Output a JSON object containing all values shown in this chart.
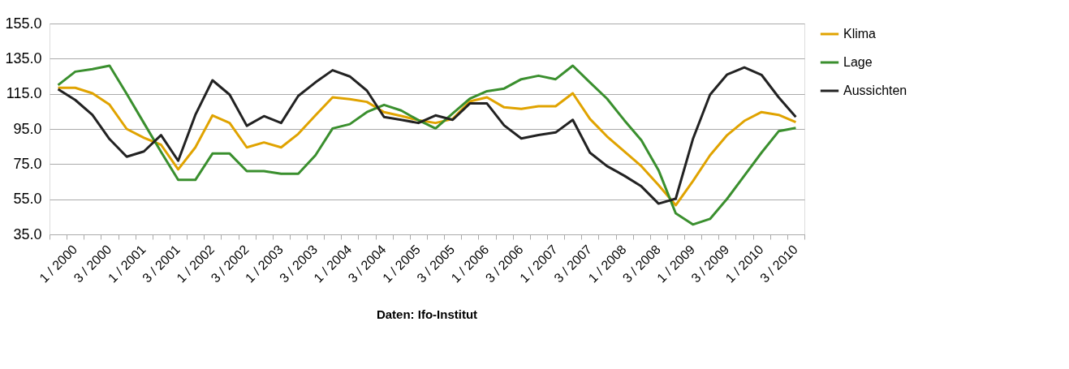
{
  "chart_data": {
    "type": "line",
    "categories": [
      "1 / 2000",
      null,
      "3 / 2000",
      null,
      "1 / 2001",
      null,
      "3 / 2001",
      null,
      "1 / 2002",
      null,
      "3 / 2002",
      null,
      "1 / 2003",
      null,
      "3 / 2003",
      null,
      "1 / 2004",
      null,
      "3 / 2004",
      null,
      "1 / 2005",
      null,
      "3 / 2005",
      null,
      "1 / 2006",
      null,
      "3 / 2006",
      null,
      "1 / 2007",
      null,
      "3 / 2007",
      null,
      "1 / 2008",
      null,
      "3 / 2008",
      null,
      "1 / 2009",
      null,
      "3 / 2009",
      null,
      "1 / 2010",
      null,
      "3 / 2010",
      null
    ],
    "series": [
      {
        "name": "Klima",
        "color": "#e0a300",
        "values": [
          118.4,
          118.4,
          115.3,
          108.8,
          95.0,
          90.0,
          86.0,
          72.0,
          84.5,
          102.7,
          98.4,
          84.5,
          87.3,
          84.5,
          92.2,
          102.7,
          113.0,
          112.0,
          110.4,
          104.6,
          102.4,
          100.0,
          98.4,
          100.7,
          110.7,
          113.0,
          107.3,
          106.4,
          107.9,
          107.9,
          115.3,
          100.7,
          90.7,
          82.2,
          73.8,
          63.0,
          51.6,
          65.3,
          80.0,
          91.5,
          99.6,
          104.6,
          103.0,
          98.9
        ]
      },
      {
        "name": "Lage",
        "color": "#3a8f2e",
        "values": [
          120.0,
          127.6,
          129.0,
          131.0,
          115.0,
          98.4,
          82.0,
          66.0,
          66.0,
          81.0,
          81.0,
          71.0,
          71.0,
          69.5,
          69.5,
          80.0,
          95.3,
          97.7,
          104.6,
          108.7,
          105.5,
          100.0,
          95.3,
          103.8,
          112.2,
          116.5,
          118.0,
          123.3,
          125.3,
          123.3,
          131.0,
          121.5,
          112.2,
          100.0,
          88.5,
          71.5,
          47.0,
          40.6,
          43.8,
          55.3,
          68.4,
          81.5,
          93.7,
          95.6
        ]
      },
      {
        "name": "Aussichten",
        "color": "#222222",
        "values": [
          117.6,
          111.5,
          103.0,
          89.2,
          79.2,
          82.2,
          91.5,
          76.9,
          103.0,
          122.7,
          114.5,
          96.8,
          102.3,
          98.4,
          113.8,
          121.5,
          128.4,
          124.9,
          116.8,
          101.8,
          100.2,
          98.4,
          102.7,
          100.2,
          109.5,
          109.5,
          97.0,
          89.6,
          91.5,
          93.0,
          100.2,
          81.5,
          73.8,
          68.4,
          62.3,
          52.5,
          55.3,
          89.2,
          114.5,
          126.0,
          130.0,
          125.8,
          113.0,
          101.8
        ]
      }
    ],
    "ylim": [
      35,
      155
    ],
    "yticks": [
      {
        "value": 35,
        "label": "35.0"
      },
      {
        "value": 55,
        "label": "55.0"
      },
      {
        "value": 75,
        "label": "75.0"
      },
      {
        "value": 95,
        "label": "95.0"
      },
      {
        "value": 115,
        "label": "115.0"
      },
      {
        "value": 135,
        "label": "135.0"
      },
      {
        "value": 155,
        "label": "155.0"
      }
    ],
    "grid": "y",
    "legend": "right",
    "marker": "none",
    "line_style": "solid",
    "annotations": [
      "Daten: Ifo-Institut"
    ]
  }
}
